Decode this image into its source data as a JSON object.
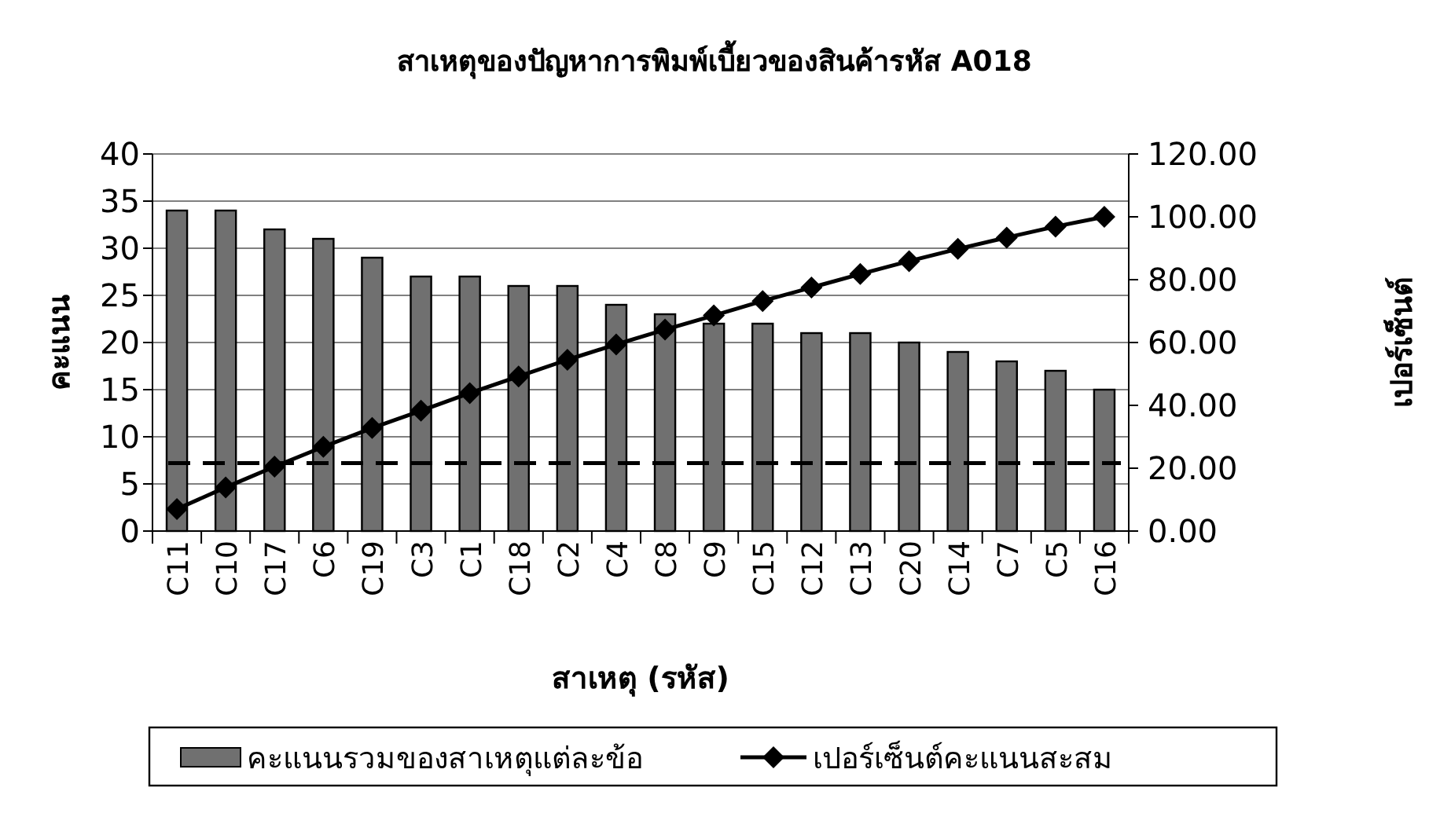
{
  "chart_data": {
    "type": "bar",
    "title": "สาเหตุของปัญหาการพิมพ์เบี้ยวของสินค้ารหัส A018",
    "xlabel": "สาเหตุ (รหัส)",
    "ylabel": "คะแนน",
    "y2label": "เปอร์เซ็นต์",
    "categories": [
      "C11",
      "C10",
      "C17",
      "C6",
      "C19",
      "C3",
      "C1",
      "C18",
      "C2",
      "C4",
      "C8",
      "C9",
      "C15",
      "C12",
      "C13",
      "C20",
      "C14",
      "C7",
      "C5",
      "C16"
    ],
    "series": [
      {
        "name": "คะแนนรวมของสาเหตุแต่ละข้อ",
        "color": "#707070",
        "values": [
          34,
          34,
          32,
          31,
          29,
          27,
          27,
          26,
          26,
          24,
          23,
          22,
          22,
          21,
          21,
          20,
          19,
          18,
          17,
          15
        ]
      },
      {
        "name": "เปอร์เซ็นต์คะแนนสะสม",
        "type": "line",
        "axis": "y2",
        "color": "#000000",
        "marker": "diamond",
        "values": [
          7.0,
          13.9,
          20.5,
          26.8,
          32.8,
          38.3,
          43.9,
          49.2,
          54.5,
          59.4,
          64.1,
          68.6,
          73.2,
          77.5,
          81.8,
          85.9,
          89.8,
          93.4,
          96.9,
          100.0
        ]
      }
    ],
    "ylim": [
      0,
      40
    ],
    "yticks": [
      0,
      5,
      10,
      15,
      20,
      25,
      30,
      35,
      40
    ],
    "y2lim": [
      0,
      120
    ],
    "y2ticks": [
      {
        "value": 0,
        "label": "0.00"
      },
      {
        "value": 20,
        "label": "20.00"
      },
      {
        "value": 40,
        "label": "40.00"
      },
      {
        "value": 60,
        "label": "60.00"
      },
      {
        "value": 80,
        "label": "80.00"
      },
      {
        "value": 100,
        "label": "100.00"
      },
      {
        "value": 120,
        "label": "120.00"
      }
    ],
    "ref_lines": [
      {
        "axis": "y",
        "value": 7.2,
        "color": "#000000",
        "line_style": "dashed"
      }
    ],
    "grid": "y",
    "legend": "bottom"
  }
}
